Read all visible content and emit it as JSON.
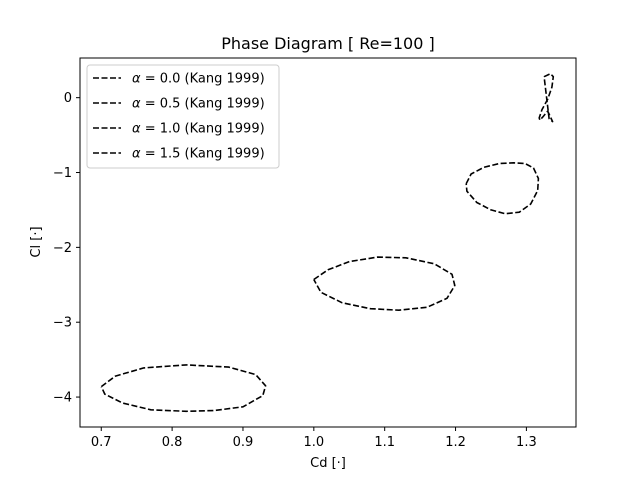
{
  "chart_data": {
    "type": "line",
    "title": "Phase Diagram [ Re=100 ]",
    "xlabel": "Cd [·]",
    "ylabel": "Cl [·]",
    "xlim": [
      0.67,
      1.37
    ],
    "ylim": [
      -4.4,
      0.53
    ],
    "xticks": [
      0.7,
      0.8,
      0.9,
      1.0,
      1.1,
      1.2,
      1.3
    ],
    "xtick_labels": [
      "0.7",
      "0.8",
      "0.9",
      "1.0",
      "1.1",
      "1.2",
      "1.3"
    ],
    "yticks": [
      0,
      -1,
      -2,
      -3,
      -4
    ],
    "ytick_labels": [
      "0",
      "−1",
      "−2",
      "−3",
      "−4"
    ],
    "grid": false,
    "legend_position": "top-left",
    "line_style": "dashed",
    "line_color": "#000000",
    "series": [
      {
        "name": "α = 0.0 (Kang 1999)",
        "alpha_symbol": "α",
        "label_rest": " = 0.0 (Kang 1999)",
        "x": [
          1.325,
          1.334,
          1.338,
          1.336,
          1.33,
          1.322,
          1.318,
          1.319,
          1.323,
          1.33,
          1.337,
          1.332,
          1.325
        ],
        "y": [
          0.28,
          0.32,
          0.28,
          0.14,
          -0.02,
          -0.16,
          -0.27,
          -0.3,
          -0.26,
          -0.18,
          -0.32,
          -0.28,
          0.28
        ]
      },
      {
        "name": "α = 0.5 (Kang 1999)",
        "alpha_symbol": "α",
        "label_rest": " = 0.5 (Kang 1999)",
        "x": [
          1.215,
          1.222,
          1.24,
          1.262,
          1.282,
          1.298,
          1.31,
          1.317,
          1.316,
          1.306,
          1.29,
          1.27,
          1.25,
          1.23,
          1.216,
          1.215
        ],
        "y": [
          -1.15,
          -1.02,
          -0.93,
          -0.88,
          -0.87,
          -0.88,
          -0.94,
          -1.08,
          -1.24,
          -1.42,
          -1.53,
          -1.55,
          -1.5,
          -1.4,
          -1.25,
          -1.15
        ]
      },
      {
        "name": "α = 1.0 (Kang 1999)",
        "alpha_symbol": "α",
        "label_rest": " = 1.0 (Kang 1999)",
        "x": [
          1.0,
          1.02,
          1.05,
          1.09,
          1.13,
          1.17,
          1.195,
          1.199,
          1.188,
          1.16,
          1.12,
          1.08,
          1.04,
          1.01,
          1.0
        ],
        "y": [
          -2.43,
          -2.3,
          -2.19,
          -2.13,
          -2.14,
          -2.22,
          -2.36,
          -2.51,
          -2.68,
          -2.8,
          -2.84,
          -2.82,
          -2.74,
          -2.6,
          -2.43
        ]
      },
      {
        "name": "α = 1.5 (Kang 1999)",
        "alpha_symbol": "α",
        "label_rest": " = 1.5 (Kang 1999)",
        "x": [
          0.7,
          0.72,
          0.76,
          0.82,
          0.88,
          0.918,
          0.932,
          0.928,
          0.9,
          0.86,
          0.82,
          0.77,
          0.73,
          0.705,
          0.7
        ],
        "y": [
          -3.86,
          -3.72,
          -3.61,
          -3.57,
          -3.6,
          -3.7,
          -3.85,
          -3.98,
          -4.13,
          -4.18,
          -4.19,
          -4.17,
          -4.08,
          -3.96,
          -3.86
        ]
      }
    ]
  }
}
